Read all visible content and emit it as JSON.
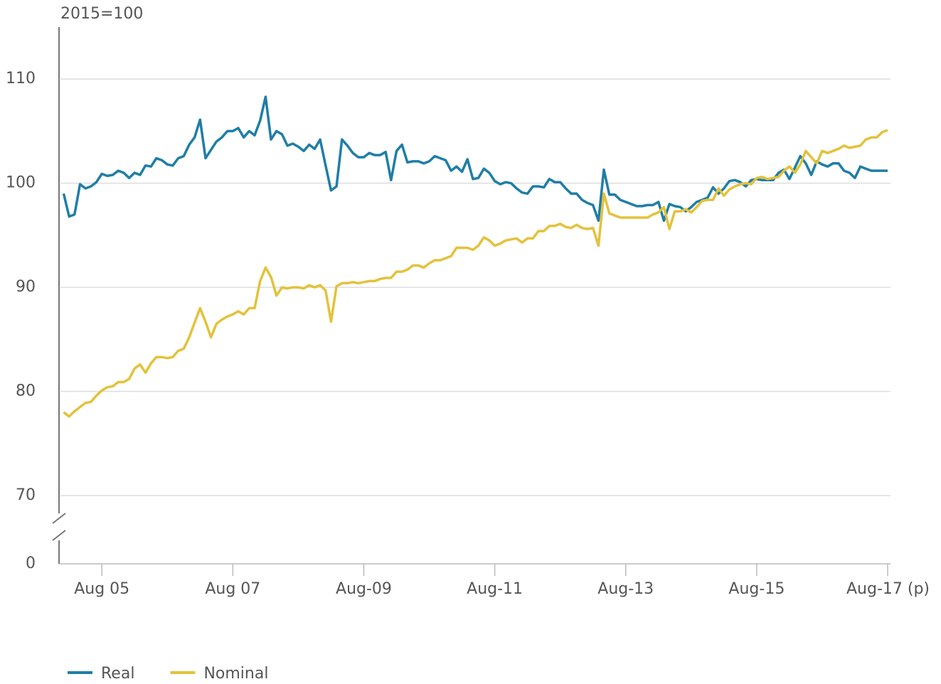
{
  "chart_data": {
    "type": "line",
    "y_axis_label": "2015=100",
    "x": [
      "2005-01",
      "2005-02",
      "2005-03",
      "2005-04",
      "2005-05",
      "2005-06",
      "2005-07",
      "2005-08",
      "2005-09",
      "2005-10",
      "2005-11",
      "2005-12",
      "2006-01",
      "2006-02",
      "2006-03",
      "2006-04",
      "2006-05",
      "2006-06",
      "2006-07",
      "2006-08",
      "2006-09",
      "2006-10",
      "2006-11",
      "2006-12",
      "2007-01",
      "2007-02",
      "2007-03",
      "2007-04",
      "2007-05",
      "2007-06",
      "2007-07",
      "2007-08",
      "2007-09",
      "2007-10",
      "2007-11",
      "2007-12",
      "2008-01",
      "2008-02",
      "2008-03",
      "2008-04",
      "2008-05",
      "2008-06",
      "2008-07",
      "2008-08",
      "2008-09",
      "2008-10",
      "2008-11",
      "2008-12",
      "2009-01",
      "2009-02",
      "2009-03",
      "2009-04",
      "2009-05",
      "2009-06",
      "2009-07",
      "2009-08",
      "2009-09",
      "2009-10",
      "2009-11",
      "2009-12",
      "2010-01",
      "2010-02",
      "2010-03",
      "2010-04",
      "2010-05",
      "2010-06",
      "2010-07",
      "2010-08",
      "2010-09",
      "2010-10",
      "2010-11",
      "2010-12",
      "2011-01",
      "2011-02",
      "2011-03",
      "2011-04",
      "2011-05",
      "2011-06",
      "2011-07",
      "2011-08",
      "2011-09",
      "2011-10",
      "2011-11",
      "2011-12",
      "2012-01",
      "2012-02",
      "2012-03",
      "2012-04",
      "2012-05",
      "2012-06",
      "2012-07",
      "2012-08",
      "2012-09",
      "2012-10",
      "2012-11",
      "2012-12",
      "2013-01",
      "2013-02",
      "2013-03",
      "2013-04",
      "2013-05",
      "2013-06",
      "2013-07",
      "2013-08",
      "2013-09",
      "2013-10",
      "2013-11",
      "2013-12",
      "2014-01",
      "2014-02",
      "2014-03",
      "2014-04",
      "2014-05",
      "2014-06",
      "2014-07",
      "2014-08",
      "2014-09",
      "2014-10",
      "2014-11",
      "2014-12",
      "2015-01",
      "2015-02",
      "2015-03",
      "2015-04",
      "2015-05",
      "2015-06",
      "2015-07",
      "2015-08",
      "2015-09",
      "2015-10",
      "2015-11",
      "2015-12",
      "2016-01",
      "2016-02",
      "2016-03",
      "2016-04",
      "2016-05",
      "2016-06",
      "2016-07",
      "2016-08",
      "2016-09",
      "2016-10",
      "2016-11",
      "2016-12",
      "2017-01",
      "2017-02",
      "2017-03",
      "2017-04",
      "2017-05",
      "2017-06",
      "2017-07",
      "2017-08"
    ],
    "series": [
      {
        "name": "Real",
        "color": "#1f7ea6",
        "values": [
          99.0,
          96.8,
          97.0,
          99.9,
          99.5,
          99.7,
          100.1,
          100.9,
          100.7,
          100.8,
          101.2,
          101.0,
          100.5,
          101.0,
          100.8,
          101.7,
          101.6,
          102.4,
          102.2,
          101.8,
          101.7,
          102.4,
          102.6,
          103.7,
          104.4,
          106.1,
          102.4,
          103.2,
          104.0,
          104.4,
          105.0,
          105.0,
          105.3,
          104.4,
          105.0,
          104.6,
          106.0,
          108.3,
          104.2,
          105.0,
          104.7,
          103.6,
          103.8,
          103.5,
          103.1,
          103.7,
          103.3,
          104.2,
          101.7,
          99.3,
          99.7,
          104.2,
          103.6,
          102.9,
          102.5,
          102.5,
          102.9,
          102.7,
          102.7,
          103.0,
          100.3,
          103.1,
          103.7,
          102.0,
          102.1,
          102.1,
          101.9,
          102.1,
          102.6,
          102.4,
          102.2,
          101.2,
          101.6,
          101.1,
          102.3,
          100.4,
          100.5,
          101.4,
          101.0,
          100.2,
          99.9,
          100.1,
          100.0,
          99.5,
          99.1,
          99.0,
          99.7,
          99.7,
          99.6,
          100.4,
          100.1,
          100.1,
          99.5,
          99.0,
          99.0,
          98.4,
          98.1,
          97.9,
          96.4,
          101.3,
          98.9,
          98.9,
          98.4,
          98.2,
          98.0,
          97.8,
          97.8,
          97.9,
          97.9,
          98.2,
          96.4,
          98.0,
          97.8,
          97.7,
          97.3,
          97.7,
          98.2,
          98.4,
          98.6,
          99.6,
          99.0,
          99.5,
          100.2,
          100.3,
          100.1,
          99.7,
          100.3,
          100.4,
          100.3,
          100.3,
          100.3,
          101.0,
          101.3,
          100.4,
          101.5,
          102.6,
          101.9,
          100.8,
          102.1,
          101.8,
          101.6,
          101.9,
          101.9,
          101.2,
          101.0,
          100.5,
          101.6,
          101.4,
          101.2,
          101.2,
          101.2,
          101.2
        ]
      },
      {
        "name": "Nominal",
        "color": "#e3c23b",
        "values": [
          78.0,
          77.6,
          78.1,
          78.5,
          78.9,
          79.0,
          79.6,
          80.1,
          80.4,
          80.5,
          80.9,
          80.9,
          81.2,
          82.2,
          82.6,
          81.8,
          82.7,
          83.3,
          83.3,
          83.2,
          83.3,
          83.9,
          84.1,
          85.2,
          86.6,
          88.0,
          86.7,
          85.2,
          86.5,
          86.9,
          87.2,
          87.4,
          87.7,
          87.4,
          88.0,
          88.0,
          90.6,
          91.9,
          91.0,
          89.2,
          90.0,
          89.9,
          90.0,
          90.0,
          89.9,
          90.2,
          90.0,
          90.2,
          89.7,
          86.7,
          90.1,
          90.4,
          90.4,
          90.5,
          90.4,
          90.5,
          90.6,
          90.6,
          90.8,
          90.9,
          90.9,
          91.5,
          91.5,
          91.7,
          92.1,
          92.1,
          91.9,
          92.3,
          92.6,
          92.6,
          92.8,
          93.0,
          93.8,
          93.8,
          93.8,
          93.6,
          94.0,
          94.8,
          94.5,
          94.0,
          94.2,
          94.5,
          94.6,
          94.7,
          94.3,
          94.7,
          94.7,
          95.4,
          95.4,
          95.9,
          95.9,
          96.1,
          95.8,
          95.7,
          96.0,
          95.7,
          95.6,
          95.7,
          94.0,
          99.0,
          97.1,
          96.9,
          96.7,
          96.7,
          96.7,
          96.7,
          96.7,
          96.7,
          97.0,
          97.2,
          97.7,
          95.6,
          97.3,
          97.3,
          97.5,
          97.2,
          97.7,
          98.3,
          98.4,
          98.4,
          99.5,
          98.8,
          99.4,
          99.7,
          99.9,
          100.0,
          99.9,
          100.5,
          100.6,
          100.4,
          100.5,
          100.6,
          101.2,
          101.6,
          101.0,
          101.8,
          103.1,
          102.5,
          101.9,
          103.1,
          102.9,
          103.1,
          103.3,
          103.6,
          103.4,
          103.5,
          103.6,
          104.2,
          104.4,
          104.4,
          104.9,
          105.1
        ]
      }
    ],
    "ylim": [
      70,
      115
    ],
    "yticks": [
      0,
      70,
      80,
      90,
      100,
      110
    ],
    "axis_break": true,
    "xticks": [
      {
        "value": "2005-08",
        "label": "Aug 05"
      },
      {
        "value": "2007-08",
        "label": "Aug 07"
      },
      {
        "value": "2009-08",
        "label": "Aug-09"
      },
      {
        "value": "2011-08",
        "label": "Aug-11"
      },
      {
        "value": "2013-08",
        "label": "Aug-13"
      },
      {
        "value": "2015-08",
        "label": "Aug-15"
      },
      {
        "value": "2017-08",
        "label": "Aug-17 (p)"
      }
    ],
    "grid": true,
    "legend": "bottom-left"
  }
}
